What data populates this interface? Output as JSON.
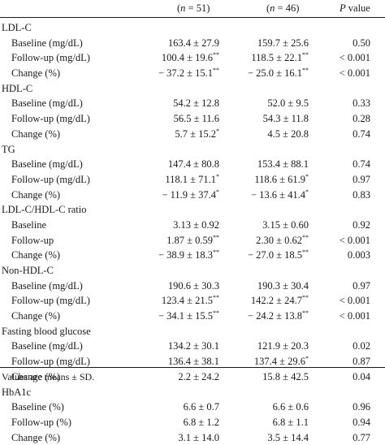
{
  "header": {
    "col1": {
      "pre": "(",
      "var": "n",
      "post": " = 51)"
    },
    "col2": {
      "pre": "(",
      "var": "n",
      "post": " = 46)"
    },
    "col3": {
      "var": "P",
      "post": " value"
    }
  },
  "rows": [
    {
      "type": "group",
      "label": "LDL-C"
    },
    {
      "type": "sub",
      "label": "Baseline (mg/dL)",
      "c1": "163.4 ± 27.9",
      "c1s": "",
      "c2": "159.7 ± 25.6",
      "c2s": "",
      "p": "0.50"
    },
    {
      "type": "sub",
      "label": "Follow-up (mg/dL)",
      "c1": "100.4 ± 19.6",
      "c1s": "**",
      "c2": "118.5 ± 22.1",
      "c2s": "**",
      "p": "< 0.001"
    },
    {
      "type": "sub",
      "label": "Change (%)",
      "c1": "− 37.2 ± 15.1",
      "c1s": "**",
      "c2": "− 25.0 ± 16.1",
      "c2s": "**",
      "p": "< 0.001"
    },
    {
      "type": "group",
      "label": "HDL-C"
    },
    {
      "type": "sub",
      "label": "Baseline (mg/dL)",
      "c1": "54.2 ± 12.8",
      "c1s": "",
      "c2": "52.0 ± 9.5",
      "c2s": "",
      "p": "0.33"
    },
    {
      "type": "sub",
      "label": "Follow-up (mg/dL)",
      "c1": "56.5 ± 11.6",
      "c1s": "",
      "c2": "54.3 ± 11.8",
      "c2s": "",
      "p": "0.28"
    },
    {
      "type": "sub",
      "label": "Change (%)",
      "c1": "5.7 ± 15.2",
      "c1s": "*",
      "c2": "4.5 ± 20.8",
      "c2s": "",
      "p": "0.74"
    },
    {
      "type": "group",
      "label": "TG"
    },
    {
      "type": "sub",
      "label": "Baseline (mg/dL)",
      "c1": "147.4 ± 80.8",
      "c1s": "",
      "c2": "153.4 ± 88.1",
      "c2s": "",
      "p": "0.74"
    },
    {
      "type": "sub",
      "label": "Follow-up (mg/dL)",
      "c1": "118.1 ± 71.1",
      "c1s": "*",
      "c2": "118.6 ± 61.9",
      "c2s": "*",
      "p": "0.97"
    },
    {
      "type": "sub",
      "label": "Change (%)",
      "c1": "− 11.9 ± 37.4",
      "c1s": "*",
      "c2": "− 13.6 ± 41.4",
      "c2s": "*",
      "p": "0.83"
    },
    {
      "type": "group",
      "label": "LDL-C/HDL-C ratio"
    },
    {
      "type": "sub",
      "label": "Baseline",
      "c1": "3.13 ± 0.92",
      "c1s": "",
      "c2": "3.15 ± 0.60",
      "c2s": "",
      "p": "0.92"
    },
    {
      "type": "sub",
      "label": "Follow-up",
      "c1": "1.87 ± 0.59",
      "c1s": "**",
      "c2": "2.30 ± 0.62",
      "c2s": "**",
      "p": "< 0.001"
    },
    {
      "type": "sub",
      "label": "Change (%)",
      "c1": "− 38.9 ± 18.3",
      "c1s": "**",
      "c2": "− 27.0 ± 18.5",
      "c2s": "**",
      "p": "0.003"
    },
    {
      "type": "group",
      "label": "Non-HDL-C"
    },
    {
      "type": "sub",
      "label": "Baseline (mg/dL)",
      "c1": "190.6 ± 30.3",
      "c1s": "",
      "c2": "190.3 ± 30.4",
      "c2s": "",
      "p": "0.97"
    },
    {
      "type": "sub",
      "label": "Follow-up (mg/dL)",
      "c1": "123.4 ± 21.5",
      "c1s": "**",
      "c2": "142.2 ± 24.7",
      "c2s": "**",
      "p": "< 0.001"
    },
    {
      "type": "sub",
      "label": "Change (%)",
      "c1": "− 34.1 ± 15.5",
      "c1s": "**",
      "c2": "− 24.2 ± 13.8",
      "c2s": "**",
      "p": "< 0.001"
    },
    {
      "type": "group",
      "label": "Fasting blood glucose"
    },
    {
      "type": "sub",
      "label": "Baseline (mg/dL)",
      "c1": "134.2 ± 30.1",
      "c1s": "",
      "c2": "121.9 ± 20.3",
      "c2s": "",
      "p": "0.02"
    },
    {
      "type": "sub",
      "label": "Follow-up (mg/dL)",
      "c1": "136.4 ± 38.1",
      "c1s": "",
      "c2": "137.4 ± 29.6",
      "c2s": "*",
      "p": "0.87"
    },
    {
      "type": "sub",
      "label": "Change (%)",
      "c1": "2.2 ± 24.2",
      "c1s": "",
      "c2": "15.8 ± 42.5",
      "c2s": "",
      "p": "0.04"
    },
    {
      "type": "group",
      "label": "HbA1c"
    },
    {
      "type": "sub",
      "label": "Baseline (%)",
      "c1": "6.6 ± 0.7",
      "c1s": "",
      "c2": "6.6 ± 0.6",
      "c2s": "",
      "p": "0.96"
    },
    {
      "type": "sub",
      "label": "Follow-up (%)",
      "c1": "6.8 ± 1.2",
      "c1s": "",
      "c2": "6.8 ± 1.1",
      "c2s": "",
      "p": "0.94"
    },
    {
      "type": "sub",
      "label": "Change (%)",
      "c1": "3.1 ± 14.0",
      "c1s": "",
      "c2": "3.5 ± 14.4",
      "c2s": "",
      "p": "0.77"
    }
  ],
  "footnote": "Values are means ± SD."
}
